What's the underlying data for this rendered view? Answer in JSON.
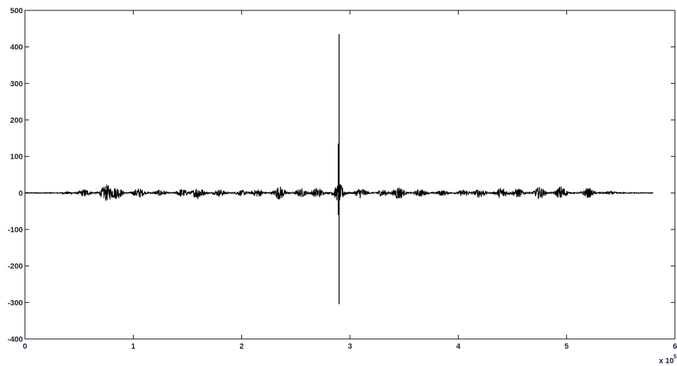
{
  "chart_data": {
    "type": "line",
    "title": "",
    "xlabel": "",
    "ylabel": "",
    "xlim": [
      0,
      6
    ],
    "ylim": [
      -400,
      500
    ],
    "x_multiplier_label": "x 10",
    "x_multiplier_exponent": "5",
    "xticks": [
      "0",
      "1",
      "2",
      "3",
      "4",
      "5",
      "6"
    ],
    "yticks": [
      "-400",
      "-300",
      "-200",
      "-100",
      "0",
      "100",
      "200",
      "300",
      "400",
      "500"
    ],
    "grid": false,
    "line_color": "#000000",
    "series": [
      {
        "signal_extent": [
          0,
          5.8
        ],
        "bursts": [
          {
            "x": 0.4,
            "amp": 3
          },
          {
            "x": 0.55,
            "amp": 10
          },
          {
            "x": 0.75,
            "amp": 22
          },
          {
            "x": 0.85,
            "amp": 16
          },
          {
            "x": 1.05,
            "amp": 13
          },
          {
            "x": 1.25,
            "amp": 8
          },
          {
            "x": 1.45,
            "amp": 11
          },
          {
            "x": 1.6,
            "amp": 17
          },
          {
            "x": 1.8,
            "amp": 9
          },
          {
            "x": 2.0,
            "amp": 7
          },
          {
            "x": 2.15,
            "amp": 10
          },
          {
            "x": 2.35,
            "amp": 18
          },
          {
            "x": 2.55,
            "amp": 11
          },
          {
            "x": 2.7,
            "amp": 14
          },
          {
            "x": 2.9,
            "amp": 24
          },
          {
            "x": 3.1,
            "amp": 14
          },
          {
            "x": 3.3,
            "amp": 9
          },
          {
            "x": 3.45,
            "amp": 18
          },
          {
            "x": 3.65,
            "amp": 10
          },
          {
            "x": 3.85,
            "amp": 7
          },
          {
            "x": 4.05,
            "amp": 8
          },
          {
            "x": 4.2,
            "amp": 12
          },
          {
            "x": 4.4,
            "amp": 15
          },
          {
            "x": 4.55,
            "amp": 12
          },
          {
            "x": 4.75,
            "amp": 16
          },
          {
            "x": 4.95,
            "amp": 18
          },
          {
            "x": 5.2,
            "amp": 13
          },
          {
            "x": 5.4,
            "amp": 4
          }
        ],
        "spike": {
          "x": 2.9,
          "max": 435,
          "min": -305,
          "secondary_max": 135,
          "secondary_min": -60
        }
      }
    ]
  }
}
